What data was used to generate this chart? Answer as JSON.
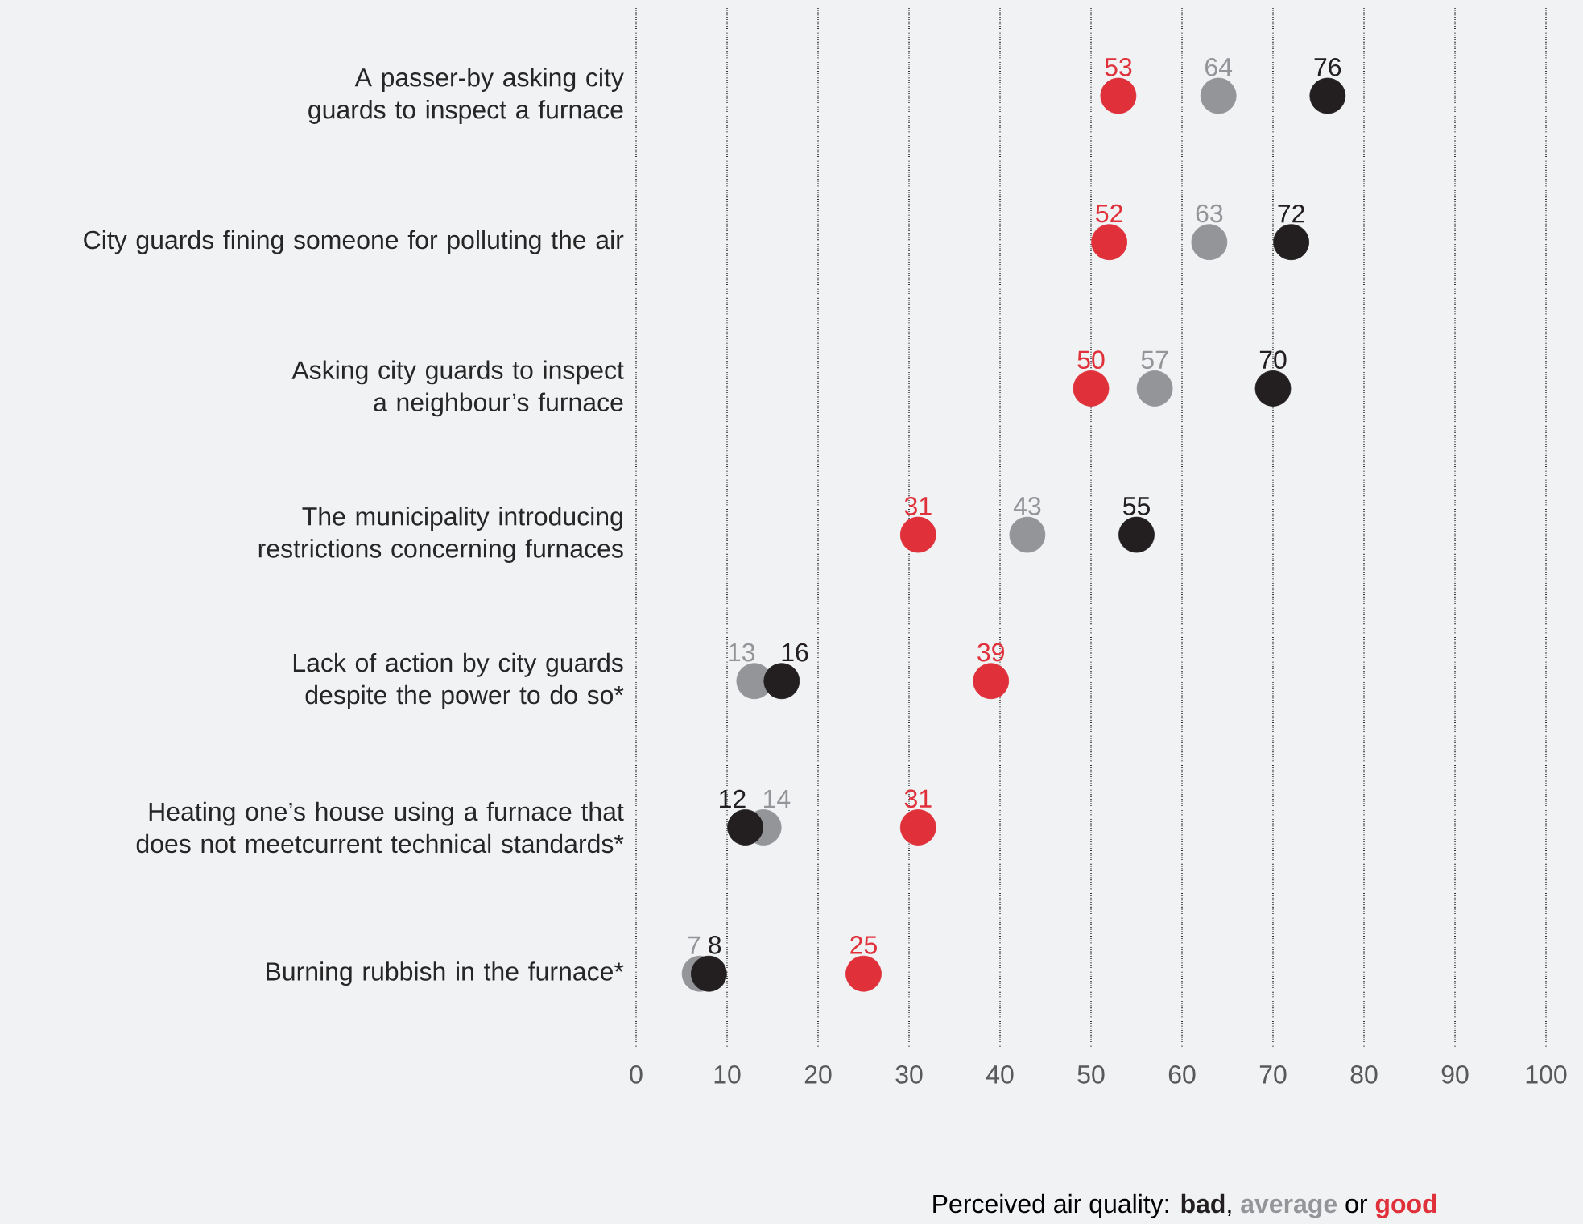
{
  "chart_data": {
    "type": "scatter",
    "orientation": "horizontal",
    "categories": [
      "A passer-by asking city guards to inspect a furnace",
      "City guards fining someone for polluting the air",
      "Asking city guards to inspect a neighbour’s furnace",
      "The municipality introducing restrictions concerning furnaces",
      "Lack of action by city guards despite the power to do so*",
      "Heating one’s house using a furnace that does not meetcurrent technical standards*",
      "Burning rubbish in the furnace*"
    ],
    "series": [
      {
        "name": "bad",
        "color": "#231f20",
        "values": [
          76,
          72,
          70,
          55,
          16,
          12,
          8
        ]
      },
      {
        "name": "average",
        "color": "#939598",
        "values": [
          64,
          63,
          57,
          43,
          13,
          14,
          7
        ]
      },
      {
        "name": "good",
        "color": "#e0303a",
        "values": [
          53,
          52,
          50,
          31,
          39,
          31,
          25
        ]
      }
    ],
    "xlim": [
      0,
      100
    ],
    "xticks": [
      0,
      10,
      20,
      30,
      40,
      50,
      60,
      70,
      80,
      90,
      100
    ],
    "grid": "x",
    "marker": "circle",
    "data_labels": true,
    "legend": "bottom right",
    "legend_title": "Perceived air quality:",
    "annotations": [
      ",",
      "or"
    ]
  }
}
